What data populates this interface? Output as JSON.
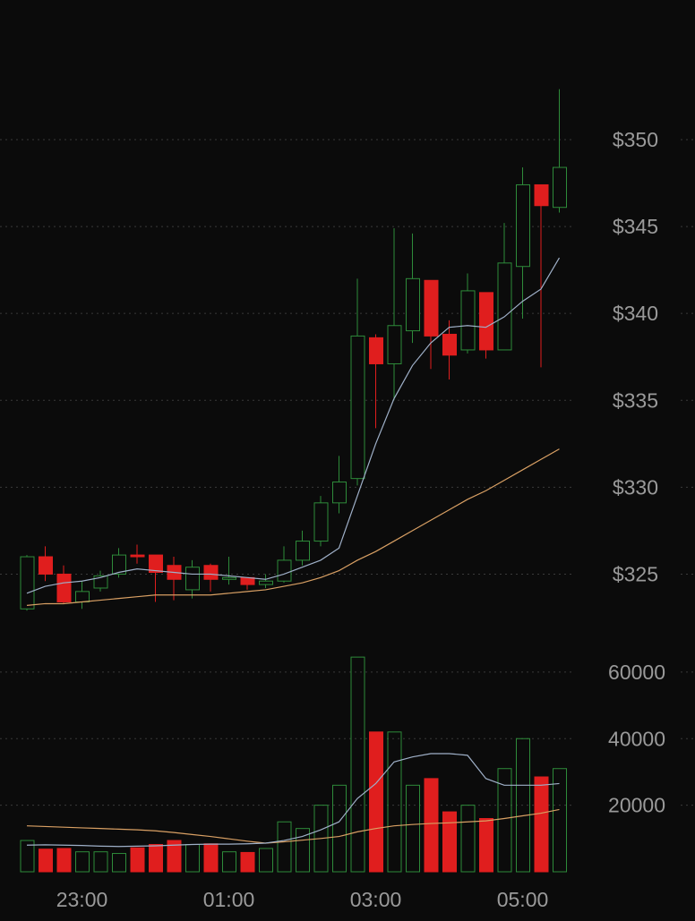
{
  "chart_data": {
    "type": "candlestick",
    "colors": {
      "up": "#2e8b3a",
      "down": "#e01e1e",
      "ma_fast": "#9fb0c8",
      "ma_slow": "#d9a064",
      "grid": "#3a3a3a",
      "text": "#9a9a9a",
      "background": "#0b0b0b"
    },
    "price_axis": {
      "ticks": [
        325,
        330,
        335,
        340,
        345,
        350
      ],
      "tick_labels": [
        "$325",
        "$330",
        "$335",
        "$340",
        "$345",
        "$350"
      ],
      "range": [
        322.5,
        353.5
      ]
    },
    "volume_axis": {
      "ticks": [
        20000,
        40000,
        60000
      ],
      "tick_labels": [
        "20000",
        "40000",
        "60000"
      ],
      "range": [
        0,
        64000
      ]
    },
    "time_axis": {
      "labels": [
        {
          "index": 3,
          "text": "23:00"
        },
        {
          "index": 11,
          "text": "01:00"
        },
        {
          "index": 19,
          "text": "03:00"
        },
        {
          "index": 27,
          "text": "05:00"
        }
      ]
    },
    "candles": [
      {
        "o": 323.0,
        "h": 326.1,
        "l": 322.9,
        "c": 326.0,
        "v": 9400
      },
      {
        "o": 326.0,
        "h": 326.6,
        "l": 324.6,
        "c": 325.0,
        "v": 6800
      },
      {
        "o": 325.0,
        "h": 325.5,
        "l": 323.3,
        "c": 323.4,
        "v": 7000
      },
      {
        "o": 323.4,
        "h": 324.6,
        "l": 323.0,
        "c": 324.0,
        "v": 6000
      },
      {
        "o": 324.2,
        "h": 325.2,
        "l": 324.0,
        "c": 324.9,
        "v": 6000
      },
      {
        "o": 325.0,
        "h": 326.5,
        "l": 324.8,
        "c": 326.1,
        "v": 5500
      },
      {
        "o": 326.1,
        "h": 326.7,
        "l": 325.6,
        "c": 326.0,
        "v": 7200
      },
      {
        "o": 326.1,
        "h": 326.1,
        "l": 323.4,
        "c": 325.1,
        "v": 8200
      },
      {
        "o": 325.5,
        "h": 326.0,
        "l": 323.5,
        "c": 324.7,
        "v": 9400
      },
      {
        "o": 324.1,
        "h": 325.8,
        "l": 323.6,
        "c": 325.4,
        "v": 8200
      },
      {
        "o": 325.5,
        "h": 325.6,
        "l": 324.0,
        "c": 324.7,
        "v": 8400
      },
      {
        "o": 324.7,
        "h": 326.0,
        "l": 324.4,
        "c": 324.8,
        "v": 6000
      },
      {
        "o": 324.8,
        "h": 324.8,
        "l": 324.1,
        "c": 324.4,
        "v": 5800
      },
      {
        "o": 324.4,
        "h": 325.0,
        "l": 324.2,
        "c": 324.6,
        "v": 7000
      },
      {
        "o": 324.6,
        "h": 326.6,
        "l": 324.5,
        "c": 325.8,
        "v": 15000
      },
      {
        "o": 325.8,
        "h": 327.5,
        "l": 325.5,
        "c": 326.9,
        "v": 13000
      },
      {
        "o": 326.9,
        "h": 329.5,
        "l": 326.6,
        "c": 329.1,
        "v": 20000
      },
      {
        "o": 329.1,
        "h": 331.8,
        "l": 328.5,
        "c": 330.3,
        "v": 26000
      },
      {
        "o": 330.5,
        "h": 342.0,
        "l": 330.1,
        "c": 338.7,
        "v": 64500
      },
      {
        "o": 338.6,
        "h": 338.8,
        "l": 333.4,
        "c": 337.1,
        "v": 42000
      },
      {
        "o": 337.1,
        "h": 344.9,
        "l": 335.0,
        "c": 339.3,
        "v": 42000
      },
      {
        "o": 339.0,
        "h": 344.6,
        "l": 338.3,
        "c": 342.0,
        "v": 26000
      },
      {
        "o": 341.9,
        "h": 341.9,
        "l": 336.8,
        "c": 338.7,
        "v": 28000
      },
      {
        "o": 338.8,
        "h": 339.6,
        "l": 336.2,
        "c": 337.6,
        "v": 18000
      },
      {
        "o": 337.9,
        "h": 342.3,
        "l": 337.7,
        "c": 341.3,
        "v": 20000
      },
      {
        "o": 341.2,
        "h": 341.2,
        "l": 337.4,
        "c": 337.9,
        "v": 16000
      },
      {
        "o": 337.9,
        "h": 345.2,
        "l": 337.9,
        "c": 342.9,
        "v": 31000
      },
      {
        "o": 342.7,
        "h": 348.4,
        "l": 339.7,
        "c": 347.4,
        "v": 40000
      },
      {
        "o": 347.4,
        "h": 347.4,
        "l": 336.9,
        "c": 346.2,
        "v": 28500
      },
      {
        "o": 346.1,
        "h": 352.9,
        "l": 345.8,
        "c": 348.4,
        "v": 31000
      }
    ],
    "ma_fast": [
      323.9,
      324.3,
      324.5,
      324.6,
      324.8,
      325.1,
      325.3,
      325.2,
      325.1,
      325.0,
      325.0,
      324.9,
      324.8,
      324.7,
      325.0,
      325.4,
      325.8,
      326.5,
      329.5,
      332.5,
      335.1,
      337.0,
      338.3,
      339.2,
      339.3,
      339.2,
      339.8,
      340.7,
      341.4,
      343.2
    ],
    "ma_slow": [
      323.2,
      323.3,
      323.3,
      323.4,
      323.5,
      323.6,
      323.7,
      323.8,
      323.8,
      323.8,
      323.8,
      323.9,
      324.0,
      324.1,
      324.3,
      324.5,
      324.8,
      325.2,
      325.8,
      326.3,
      326.9,
      327.5,
      328.1,
      328.7,
      329.3,
      329.8,
      330.4,
      331.0,
      331.6,
      332.2
    ],
    "vol_ma_fast": [
      8000,
      8100,
      8000,
      7900,
      7700,
      7600,
      7700,
      7800,
      8000,
      8200,
      8300,
      8300,
      8400,
      8600,
      9400,
      10600,
      12600,
      15000,
      22000,
      26500,
      33000,
      34500,
      35500,
      35500,
      35000,
      28000,
      26000,
      26000,
      26000,
      26500
    ],
    "vol_ma_slow": [
      13800,
      13600,
      13400,
      13200,
      13000,
      12800,
      12600,
      12300,
      11800,
      11200,
      10600,
      9900,
      9200,
      8600,
      9000,
      9500,
      10000,
      10600,
      12000,
      13000,
      13800,
      14200,
      14500,
      14700,
      15000,
      15300,
      16000,
      16800,
      17600,
      18700
    ]
  }
}
